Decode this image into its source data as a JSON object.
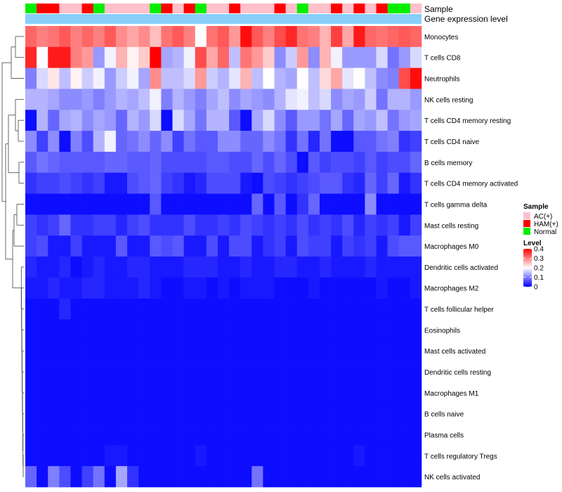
{
  "chart_data": {
    "type": "heatmap",
    "title": "",
    "annotation_rows": [
      "Sample",
      "Gene expression level"
    ],
    "sample_groups": [
      "Normal",
      "HAM(+)",
      "HAM(+)",
      "AC(+)",
      "AC(+)",
      "HAM(+)",
      "Normal",
      "AC(+)",
      "AC(+)",
      "AC(+)",
      "AC(+)",
      "Normal",
      "HAM(+)",
      "AC(+)",
      "HAM(+)",
      "Normal",
      "AC(+)",
      "AC(+)",
      "HAM(+)",
      "AC(+)",
      "AC(+)",
      "AC(+)",
      "HAM(+)",
      "AC(+)",
      "Normal",
      "AC(+)",
      "AC(+)",
      "HAM(+)",
      "AC(+)",
      "HAM(+)",
      "AC(+)",
      "HAM(+)",
      "Normal",
      "Normal",
      "AC(+)"
    ],
    "row_labels": [
      "Monocytes",
      "T cells CD8",
      "Neutrophils",
      "NK cells resting",
      "T cells CD4 memory resting",
      "T cells CD4 naive",
      "B cells memory",
      "T cells CD4 memory activated",
      "T cells gamma delta",
      "Mast cells resting",
      "Macrophages M0",
      "Dendritic cells activated",
      "Macrophages M2",
      "T cells follicular helper",
      "Eosinophils",
      "Mast cells activated",
      "Dendritic cells resting",
      "Macrophages M1",
      "B cells naive",
      "Plasma cells",
      "T cells regulatory  Tregs",
      "NK cells activated"
    ],
    "values": [
      [
        0.32,
        0.3,
        0.31,
        0.33,
        0.3,
        0.32,
        0.3,
        0.33,
        0.29,
        0.27,
        0.29,
        0.25,
        0.31,
        0.33,
        0.3,
        0.2,
        0.31,
        0.33,
        0.28,
        0.39,
        0.33,
        0.3,
        0.34,
        0.37,
        0.31,
        0.3,
        0.26,
        0.35,
        0.27,
        0.38,
        0.32,
        0.31,
        0.32,
        0.33,
        0.32
      ],
      [
        0.37,
        0.2,
        0.38,
        0.38,
        0.3,
        0.28,
        0.12,
        0.19,
        0.26,
        0.21,
        0.24,
        0.4,
        0.13,
        0.14,
        0.19,
        0.34,
        0.27,
        0.32,
        0.15,
        0.31,
        0.28,
        0.24,
        0.11,
        0.16,
        0.28,
        0.11,
        0.26,
        0.19,
        0.12,
        0.12,
        0.12,
        0.17,
        0.09,
        0.12,
        0.17
      ],
      [
        0.1,
        0.17,
        0.22,
        0.15,
        0.21,
        0.16,
        0.19,
        0.12,
        0.16,
        0.19,
        0.13,
        0.29,
        0.15,
        0.15,
        0.17,
        0.28,
        0.16,
        0.14,
        0.18,
        0.26,
        0.15,
        0.2,
        0.14,
        0.13,
        0.2,
        0.15,
        0.23,
        0.27,
        0.18,
        0.2,
        0.15,
        0.11,
        0.1,
        0.34,
        0.39
      ],
      [
        0.14,
        0.14,
        0.13,
        0.11,
        0.11,
        0.12,
        0.1,
        0.12,
        0.14,
        0.13,
        0.15,
        0.19,
        0.1,
        0.14,
        0.12,
        0.1,
        0.13,
        0.15,
        0.11,
        0.13,
        0.12,
        0.11,
        0.14,
        0.18,
        0.19,
        0.15,
        0.17,
        0.11,
        0.13,
        0.12,
        0.16,
        0.09,
        0.14,
        0.14,
        0.12
      ],
      [
        0.01,
        0.14,
        0.08,
        0.13,
        0.14,
        0.11,
        0.13,
        0.12,
        0.08,
        0.14,
        0.12,
        0.17,
        0.01,
        0.17,
        0.13,
        0.09,
        0.14,
        0.14,
        0.07,
        0.01,
        0.13,
        0.17,
        0.11,
        0.07,
        0.12,
        0.12,
        0.09,
        0.13,
        0.08,
        0.13,
        0.12,
        0.15,
        0.09,
        0.12,
        0.13
      ],
      [
        0.11,
        0.05,
        0.11,
        0.01,
        0.1,
        0.06,
        0.14,
        0.19,
        0.08,
        0.09,
        0.11,
        0.08,
        0.11,
        0.05,
        0.09,
        0.07,
        0.07,
        0.11,
        0.11,
        0.08,
        0.08,
        0.11,
        0.09,
        0.04,
        0.09,
        0.03,
        0.09,
        0.01,
        0.01,
        0.07,
        0.07,
        0.09,
        0.1,
        0.04,
        0.05
      ],
      [
        0.07,
        0.09,
        0.08,
        0.07,
        0.07,
        0.07,
        0.07,
        0.08,
        0.08,
        0.07,
        0.07,
        0.08,
        0.06,
        0.06,
        0.06,
        0.06,
        0.07,
        0.07,
        0.06,
        0.06,
        0.08,
        0.06,
        0.08,
        0.06,
        0.01,
        0.07,
        0.05,
        0.06,
        0.06,
        0.05,
        0.07,
        0.05,
        0.06,
        0.06,
        0.08
      ],
      [
        0.04,
        0.05,
        0.05,
        0.06,
        0.05,
        0.04,
        0.05,
        0.02,
        0.02,
        0.06,
        0.07,
        0.08,
        0.05,
        0.04,
        0.02,
        0.03,
        0.06,
        0.06,
        0.06,
        0.02,
        0.01,
        0.06,
        0.05,
        0.04,
        0.05,
        0.06,
        0.07,
        0.07,
        0.04,
        0.03,
        0.08,
        0.05,
        0.08,
        0.02,
        0.04
      ],
      [
        0.01,
        0.01,
        0.01,
        0.01,
        0.01,
        0.01,
        0.01,
        0.01,
        0.01,
        0.01,
        0.01,
        0.07,
        0.01,
        0.01,
        0.01,
        0.01,
        0.01,
        0.01,
        0.01,
        0.01,
        0.08,
        0.01,
        0.07,
        0.01,
        0.04,
        0.08,
        0.01,
        0.01,
        0.01,
        0.01,
        0.11,
        0.01,
        0.01,
        0.01,
        0.01
      ],
      [
        0.05,
        0.04,
        0.05,
        0.08,
        0.04,
        0.04,
        0.05,
        0.05,
        0.03,
        0.05,
        0.06,
        0.04,
        0.04,
        0.04,
        0.06,
        0.04,
        0.04,
        0.05,
        0.04,
        0.06,
        0.05,
        0.04,
        0.05,
        0.04,
        0.06,
        0.04,
        0.05,
        0.04,
        0.06,
        0.03,
        0.05,
        0.04,
        0.05,
        0.02,
        0.05
      ],
      [
        0.05,
        0.06,
        0.02,
        0.02,
        0.05,
        0.02,
        0.02,
        0.02,
        0.07,
        0.02,
        0.02,
        0.07,
        0.06,
        0.07,
        0.02,
        0.02,
        0.06,
        0.02,
        0.06,
        0.06,
        0.02,
        0.04,
        0.05,
        0.02,
        0.06,
        0.05,
        0.05,
        0.02,
        0.05,
        0.04,
        0.05,
        0.02,
        0.06,
        0.07,
        0.07
      ],
      [
        0.03,
        0.02,
        0.02,
        0.03,
        0.01,
        0.02,
        0.03,
        0.02,
        0.02,
        0.03,
        0.03,
        0.02,
        0.02,
        0.02,
        0.03,
        0.03,
        0.03,
        0.02,
        0.02,
        0.03,
        0.02,
        0.02,
        0.03,
        0.03,
        0.02,
        0.02,
        0.03,
        0.02,
        0.02,
        0.02,
        0.03,
        0.02,
        0.02,
        0.02,
        0.02
      ],
      [
        0.02,
        0.02,
        0.03,
        0.02,
        0.02,
        0.03,
        0.03,
        0.02,
        0.02,
        0.02,
        0.03,
        0.02,
        0.01,
        0.01,
        0.02,
        0.02,
        0.01,
        0.02,
        0.01,
        0.02,
        0.02,
        0.02,
        0.01,
        0.01,
        0.01,
        0.02,
        0.01,
        0.01,
        0.01,
        0.01,
        0.01,
        0.02,
        0.01,
        0.01,
        0.02
      ],
      [
        0.01,
        0.01,
        0.01,
        0.03,
        0.01,
        0.01,
        0.01,
        0.01,
        0.01,
        0.01,
        0.01,
        0.01,
        0.01,
        0.01,
        0.01,
        0.01,
        0.01,
        0.01,
        0.01,
        0.01,
        0.01,
        0.01,
        0.01,
        0.01,
        0.01,
        0.01,
        0.01,
        0.01,
        0.01,
        0.01,
        0.01,
        0.01,
        0.01,
        0.01,
        0.01
      ],
      [
        0.01,
        0.01,
        0.01,
        0.01,
        0.01,
        0.01,
        0.01,
        0.01,
        0.01,
        0.01,
        0.01,
        0.01,
        0.01,
        0.01,
        0.01,
        0.01,
        0.01,
        0.01,
        0.01,
        0.01,
        0.01,
        0.01,
        0.01,
        0.01,
        0.01,
        0.01,
        0.01,
        0.01,
        0.01,
        0.01,
        0.01,
        0.01,
        0.01,
        0.01,
        0.01
      ],
      [
        0.01,
        0.01,
        0.01,
        0.01,
        0.01,
        0.01,
        0.01,
        0.01,
        0.01,
        0.01,
        0.01,
        0.01,
        0.01,
        0.01,
        0.01,
        0.01,
        0.01,
        0.01,
        0.01,
        0.01,
        0.01,
        0.01,
        0.01,
        0.01,
        0.01,
        0.01,
        0.01,
        0.01,
        0.01,
        0.01,
        0.01,
        0.01,
        0.01,
        0.01,
        0.01
      ],
      [
        0.01,
        0.01,
        0.01,
        0.01,
        0.01,
        0.01,
        0.01,
        0.01,
        0.01,
        0.01,
        0.01,
        0.01,
        0.01,
        0.01,
        0.01,
        0.01,
        0.01,
        0.01,
        0.01,
        0.01,
        0.01,
        0.01,
        0.01,
        0.01,
        0.01,
        0.01,
        0.01,
        0.01,
        0.01,
        0.01,
        0.01,
        0.01,
        0.01,
        0.01,
        0.01
      ],
      [
        0.01,
        0.01,
        0.01,
        0.01,
        0.01,
        0.01,
        0.01,
        0.01,
        0.01,
        0.01,
        0.01,
        0.01,
        0.01,
        0.01,
        0.01,
        0.01,
        0.01,
        0.01,
        0.01,
        0.01,
        0.01,
        0.01,
        0.01,
        0.01,
        0.01,
        0.01,
        0.01,
        0.01,
        0.01,
        0.01,
        0.01,
        0.01,
        0.01,
        0.01,
        0.01
      ],
      [
        0.01,
        0.01,
        0.01,
        0.01,
        0.01,
        0.01,
        0.01,
        0.01,
        0.01,
        0.01,
        0.01,
        0.01,
        0.01,
        0.01,
        0.01,
        0.01,
        0.01,
        0.01,
        0.01,
        0.01,
        0.01,
        0.01,
        0.01,
        0.01,
        0.01,
        0.01,
        0.01,
        0.01,
        0.01,
        0.01,
        0.01,
        0.01,
        0.01,
        0.01,
        0.01
      ],
      [
        0.01,
        0.01,
        0.01,
        0.01,
        0.01,
        0.01,
        0.01,
        0.01,
        0.01,
        0.01,
        0.01,
        0.01,
        0.01,
        0.01,
        0.01,
        0.01,
        0.01,
        0.01,
        0.01,
        0.01,
        0.01,
        0.01,
        0.01,
        0.01,
        0.01,
        0.01,
        0.01,
        0.01,
        0.01,
        0.01,
        0.01,
        0.01,
        0.01,
        0.01,
        0.01
      ],
      [
        0.01,
        0.01,
        0.01,
        0.01,
        0.01,
        0.01,
        0.01,
        0.02,
        0.02,
        0.01,
        0.01,
        0.01,
        0.01,
        0.01,
        0.01,
        0.02,
        0.01,
        0.01,
        0.01,
        0.01,
        0.01,
        0.01,
        0.01,
        0.01,
        0.01,
        0.01,
        0.01,
        0.01,
        0.01,
        0.02,
        0.01,
        0.01,
        0.01,
        0.01,
        0.01
      ],
      [
        0.08,
        0.01,
        0.1,
        0.06,
        0.01,
        0.05,
        0.09,
        0.01,
        0.13,
        0.04,
        0.01,
        0.01,
        0.01,
        0.01,
        0.01,
        0.01,
        0.01,
        0.01,
        0.01,
        0.01,
        0.09,
        0.01,
        0.01,
        0.01,
        0.01,
        0.01,
        0.01,
        0.01,
        0.01,
        0.01,
        0.01,
        0.01,
        0.01,
        0.01,
        0.01
      ]
    ],
    "color_scale": {
      "min": 0,
      "max": 0.4,
      "low": "#0000ff",
      "mid": "#ffffff",
      "high": "#ff0000",
      "midpoint": 0.2
    },
    "annotation_colors": {
      "AC(+)": "#ffc0cb",
      "HAM(+)": "#ff0000",
      "Normal": "#00ee00",
      "Gene expression level": "#87cefa"
    },
    "legend": {
      "sample_title": "Sample",
      "sample_entries": [
        "AC(+)",
        "HAM(+)",
        "Normal"
      ],
      "level_title": "Level",
      "level_ticks": [
        "0.4",
        "0.3",
        "0.2",
        "0.1",
        "0"
      ],
      "level_tick_values": [
        0.4,
        0.3,
        0.2,
        0.1,
        0
      ]
    },
    "dendrogram": "rows clustered (hierarchical), tree on left"
  }
}
